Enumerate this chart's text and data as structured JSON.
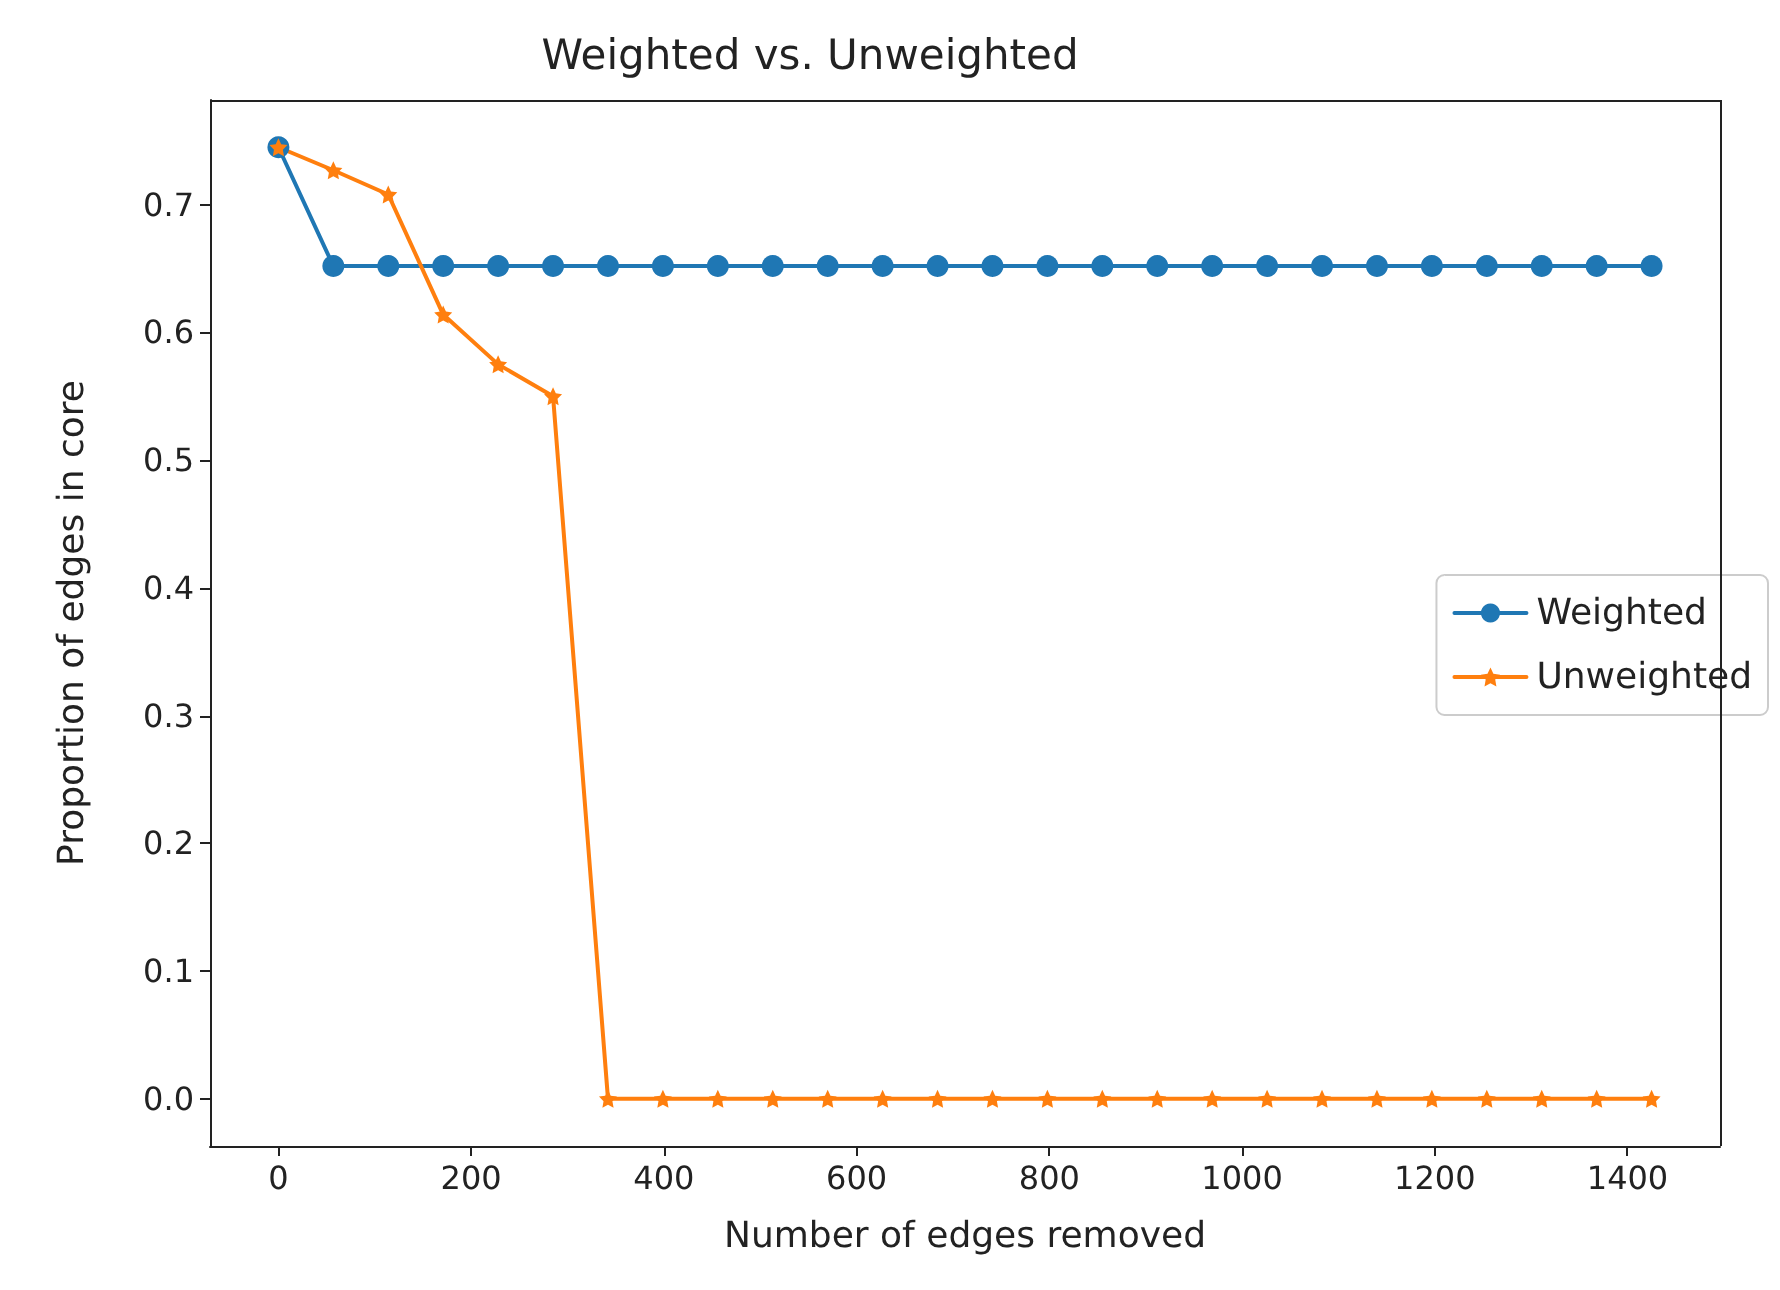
{
  "chart_data": {
    "type": "line",
    "title": "Weighted vs. Unweighted",
    "xlabel": "Number of edges removed",
    "ylabel": "Proportion of edges in core",
    "x": [
      0,
      57,
      114,
      171,
      228,
      285,
      342,
      399,
      456,
      513,
      570,
      627,
      684,
      741,
      798,
      855,
      912,
      969,
      1026,
      1083,
      1140,
      1197,
      1254,
      1311,
      1368,
      1425
    ],
    "series": [
      {
        "name": "Weighted",
        "color": "#1f77b4",
        "marker": "circle",
        "values": [
          0.745,
          0.652,
          0.652,
          0.652,
          0.652,
          0.652,
          0.652,
          0.652,
          0.652,
          0.652,
          0.652,
          0.652,
          0.652,
          0.652,
          0.652,
          0.652,
          0.652,
          0.652,
          0.652,
          0.652,
          0.652,
          0.652,
          0.652,
          0.652,
          0.652,
          0.652
        ]
      },
      {
        "name": "Unweighted",
        "color": "#ff7f0e",
        "marker": "star",
        "values": [
          0.745,
          0.727,
          0.708,
          0.614,
          0.575,
          0.55,
          0,
          0,
          0,
          0,
          0,
          0,
          0,
          0,
          0,
          0,
          0,
          0,
          0,
          0,
          0,
          0,
          0,
          0,
          0,
          0
        ]
      }
    ],
    "xlim": [
      -71,
      1496
    ],
    "xticks": [
      0,
      200,
      400,
      600,
      800,
      1000,
      1200,
      1400
    ],
    "ylim": [
      -0.037,
      0.782
    ],
    "yticks": [
      {
        "value": 0,
        "label": "0.0"
      },
      {
        "value": 0.1,
        "label": "0.1"
      },
      {
        "value": 0.2,
        "label": "0.2"
      },
      {
        "value": 0.3,
        "label": "0.3"
      },
      {
        "value": 0.4,
        "label": "0.4"
      },
      {
        "value": 0.5,
        "label": "0.5"
      },
      {
        "value": 0.6,
        "label": "0.6"
      },
      {
        "value": 0.7,
        "label": "0.7"
      }
    ],
    "grid": false,
    "legend": "right"
  }
}
